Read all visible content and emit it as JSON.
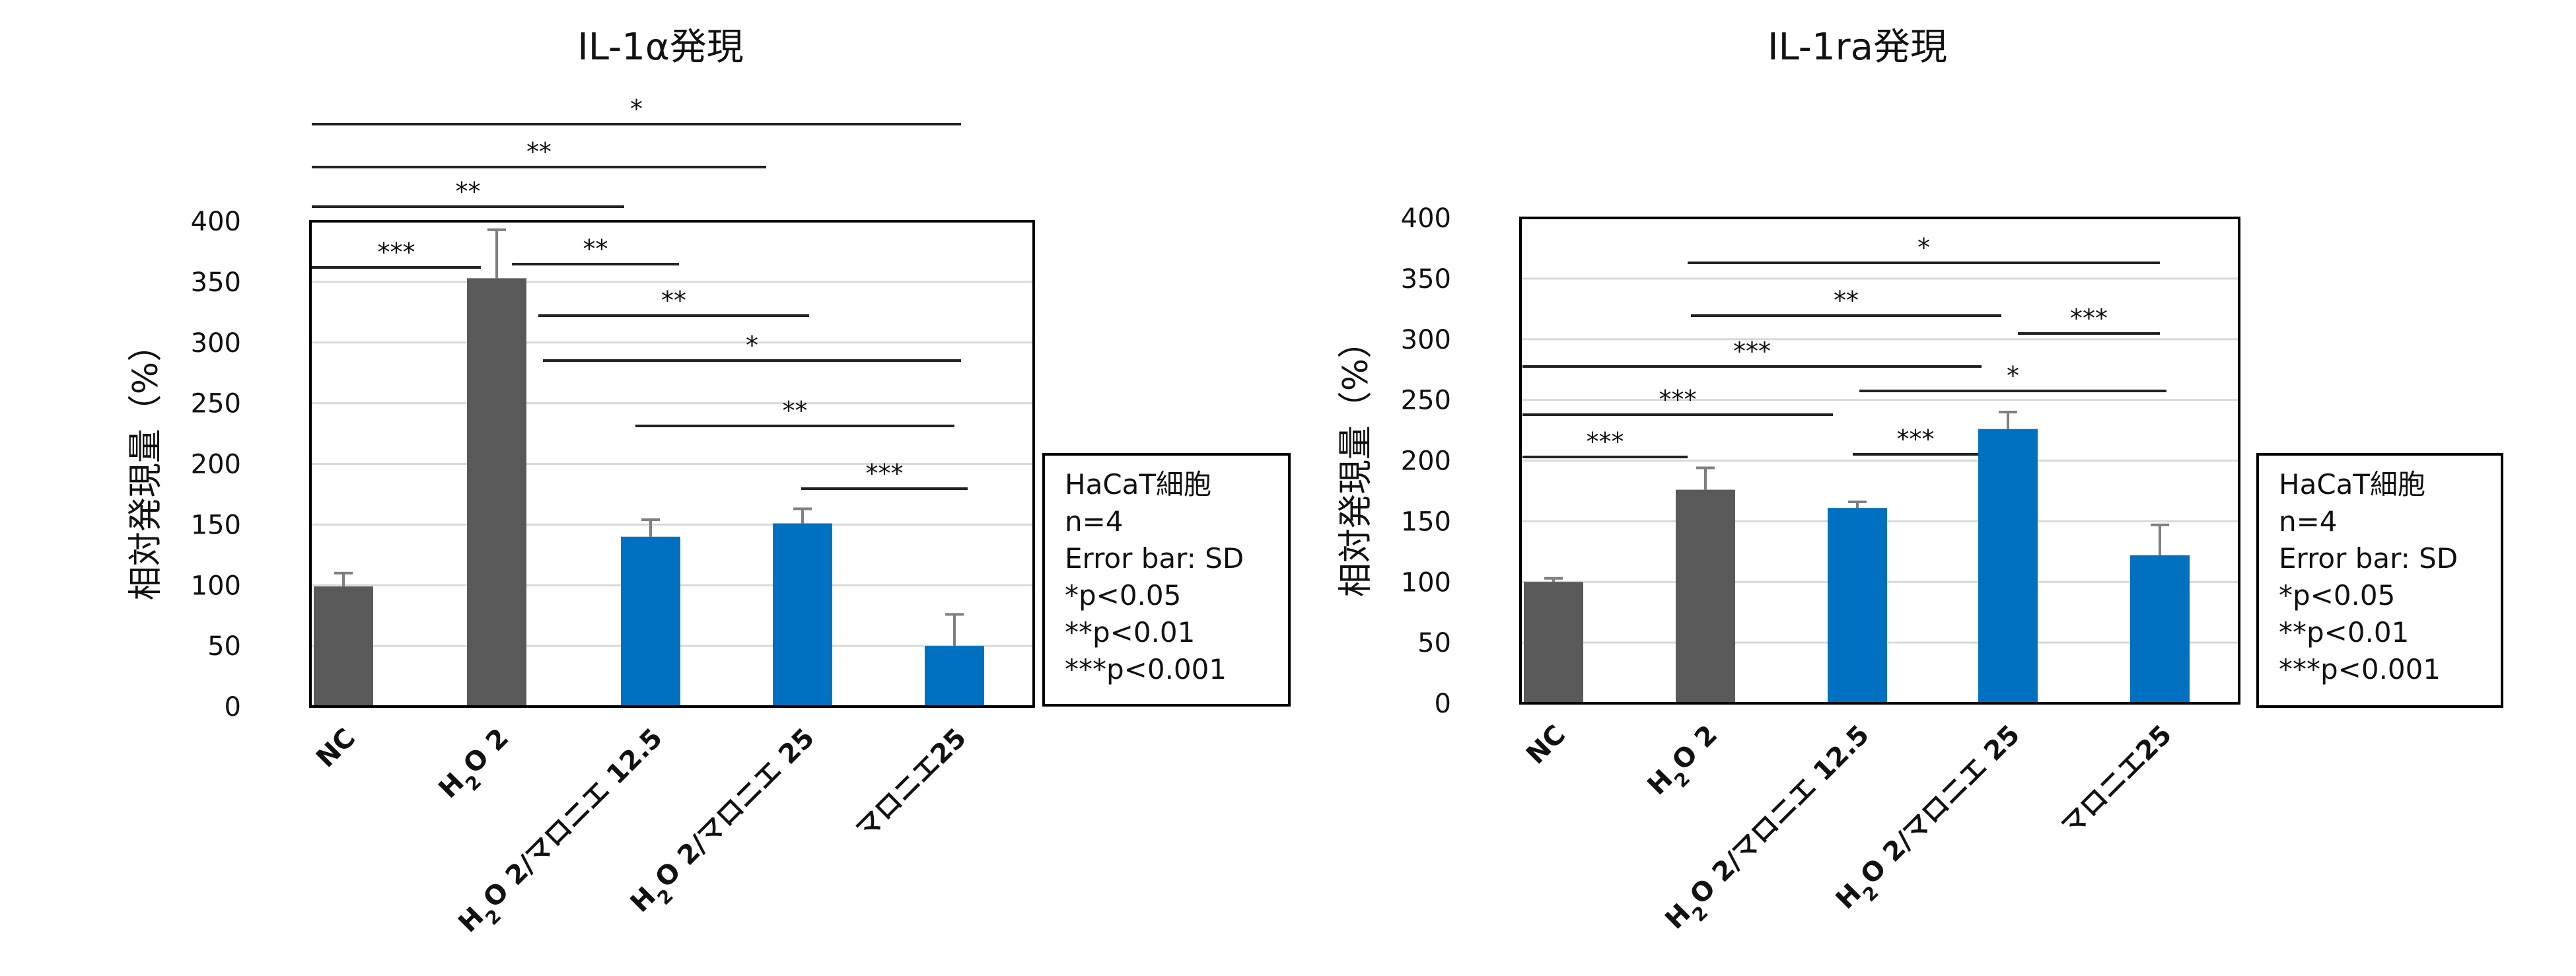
{
  "chart_data": [
    {
      "type": "bar",
      "title": "IL-1α発現",
      "xlabel": "",
      "ylabel": "相対発現量（%）",
      "ylim": [
        0,
        400
      ],
      "yticks": [
        0,
        50,
        100,
        150,
        200,
        250,
        300,
        350,
        400
      ],
      "categories": [
        "NC",
        "H2O 2",
        "H2O 2/マロニエ 12.5",
        "H2O 2/マロニエ 25",
        "マロニエ25"
      ],
      "values": [
        99,
        353,
        140,
        151,
        50
      ],
      "error": [
        11,
        40,
        14,
        12,
        26
      ],
      "bar_colors": [
        "#595959",
        "#595959",
        "#0070c0",
        "#0070c0",
        "#0070c0"
      ],
      "grid": true,
      "significance": [
        {
          "from": 0,
          "to": 4,
          "label": "*"
        },
        {
          "from": 0,
          "to": 3,
          "label": "**"
        },
        {
          "from": 0,
          "to": 2,
          "label": "**"
        },
        {
          "from": 0,
          "to": 1,
          "label": "***"
        },
        {
          "from": 1,
          "to": 2,
          "label": "**"
        },
        {
          "from": 1,
          "to": 3,
          "label": "**"
        },
        {
          "from": 1,
          "to": 4,
          "label": "*"
        },
        {
          "from": 2,
          "to": 4,
          "label": "**"
        },
        {
          "from": 3,
          "to": 4,
          "label": "***"
        }
      ],
      "legend_box": [
        "HaCaT細胞",
        "n=4",
        "Error bar: SD",
        "*p<0.05",
        "**p<0.01",
        "***p<0.001"
      ],
      "legend_position": "right"
    },
    {
      "type": "bar",
      "title": "IL-1ra発現",
      "xlabel": "",
      "ylabel": "相対発現量（%）",
      "ylim": [
        0,
        400
      ],
      "yticks": [
        0,
        50,
        100,
        150,
        200,
        250,
        300,
        350,
        400
      ],
      "categories": [
        "NC",
        "H2O 2",
        "H2O 2/マロニエ 12.5",
        "H2O 2/マロニエ 25",
        "マロニエ25"
      ],
      "values": [
        100,
        176,
        161,
        226,
        122
      ],
      "error": [
        3,
        18,
        5,
        14,
        25
      ],
      "bar_colors": [
        "#595959",
        "#595959",
        "#0070c0",
        "#0070c0",
        "#0070c0"
      ],
      "grid": true,
      "significance": [
        {
          "from": 1,
          "to": 4,
          "label": "*"
        },
        {
          "from": 1,
          "to": 3,
          "label": "**"
        },
        {
          "from": 3,
          "to": 4,
          "label": "***"
        },
        {
          "from": 0,
          "to": 3,
          "label": "***"
        },
        {
          "from": 0,
          "to": 2,
          "label": "***"
        },
        {
          "from": 2,
          "to": 4,
          "label": "*"
        },
        {
          "from": 2,
          "to": 3,
          "label": "***"
        },
        {
          "from": 0,
          "to": 1,
          "label": "***"
        }
      ],
      "legend_box": [
        "HaCaT細胞",
        "n=4",
        "Error bar: SD",
        "*p<0.05",
        "**p<0.01",
        "***p<0.001"
      ],
      "legend_position": "right"
    }
  ]
}
